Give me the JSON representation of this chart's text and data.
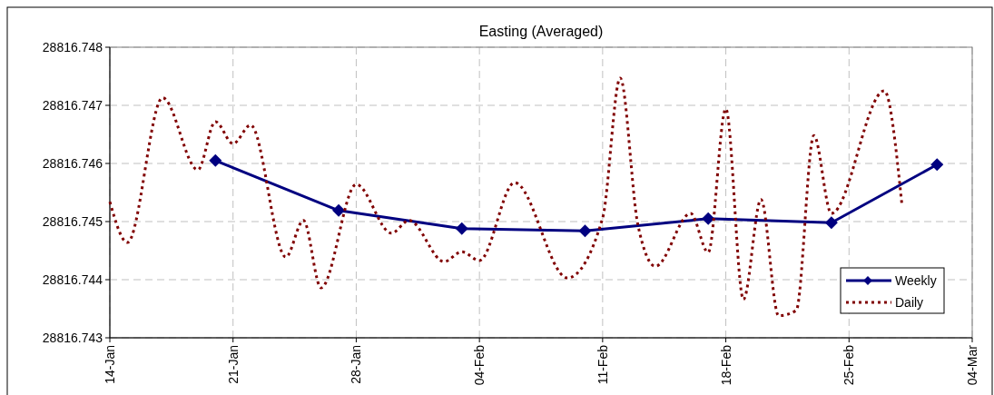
{
  "chart_data": {
    "type": "line",
    "title": "Easting (Averaged)",
    "xlim": [
      "--01-14",
      "--03-04"
    ],
    "xticks": [
      {
        "value": "--01-14",
        "label": "14-Jan"
      },
      {
        "value": "--01-21",
        "label": "21-Jan"
      },
      {
        "value": "--01-28",
        "label": "28-Jan"
      },
      {
        "value": "--02-04",
        "label": "04-Feb"
      },
      {
        "value": "--02-11",
        "label": "11-Feb"
      },
      {
        "value": "--02-18",
        "label": "18-Feb"
      },
      {
        "value": "--02-25",
        "label": "25-Feb"
      },
      {
        "value": "--03-04",
        "label": "04-Mar"
      }
    ],
    "ylim": [
      28816.743,
      28816.748
    ],
    "yticks": [
      28816.743,
      28816.744,
      28816.745,
      28816.746,
      28816.747,
      28816.748
    ],
    "grid": true,
    "legend": "bottom right",
    "series": [
      {
        "name": "Weekly",
        "color": "#000080",
        "marker": "diamond",
        "line_style": "solid",
        "x": [
          "--01-20",
          "--01-27",
          "--02-03",
          "--02-10",
          "--02-17",
          "--02-24",
          "--03-02"
        ],
        "values": [
          28816.74605,
          28816.74519,
          28816.74488,
          28816.74484,
          28816.74505,
          28816.74498,
          28816.74598
        ]
      },
      {
        "name": "Daily",
        "color": "#800000",
        "marker": "none",
        "line_style": "dotted",
        "x": [
          "--01-14",
          "--01-15",
          "--01-17",
          "--01-19",
          "--01-20",
          "--01-21",
          "--01-22",
          "--01-24",
          "--01-25",
          "--01-26",
          "--01-28",
          "--01-30",
          "--01-31",
          "--02-02",
          "--02-03",
          "--02-04",
          "--02-06",
          "--02-09",
          "--02-11",
          "--02-12",
          "--02-13",
          "--02-14",
          "--02-16",
          "--02-17",
          "--02-18",
          "--02-19",
          "--02-20",
          "--02-21",
          "--02-22",
          "--02-23",
          "--02-24",
          "--02-27",
          "--02-28"
        ],
        "values": [
          28816.74534,
          28816.74464,
          28816.74713,
          28816.74589,
          28816.74672,
          28816.74634,
          28816.74666,
          28816.74439,
          28816.74502,
          28816.74386,
          28816.74564,
          28816.7448,
          28816.74502,
          28816.74431,
          28816.74448,
          28816.74433,
          28816.74567,
          28816.74403,
          28816.74506,
          28816.74747,
          28816.74495,
          28816.74423,
          28816.74514,
          28816.74447,
          28816.74694,
          28816.74366,
          28816.74538,
          28816.74338,
          28816.74347,
          28816.74648,
          28816.74514,
          28816.74725,
          28816.74531
        ]
      }
    ]
  }
}
